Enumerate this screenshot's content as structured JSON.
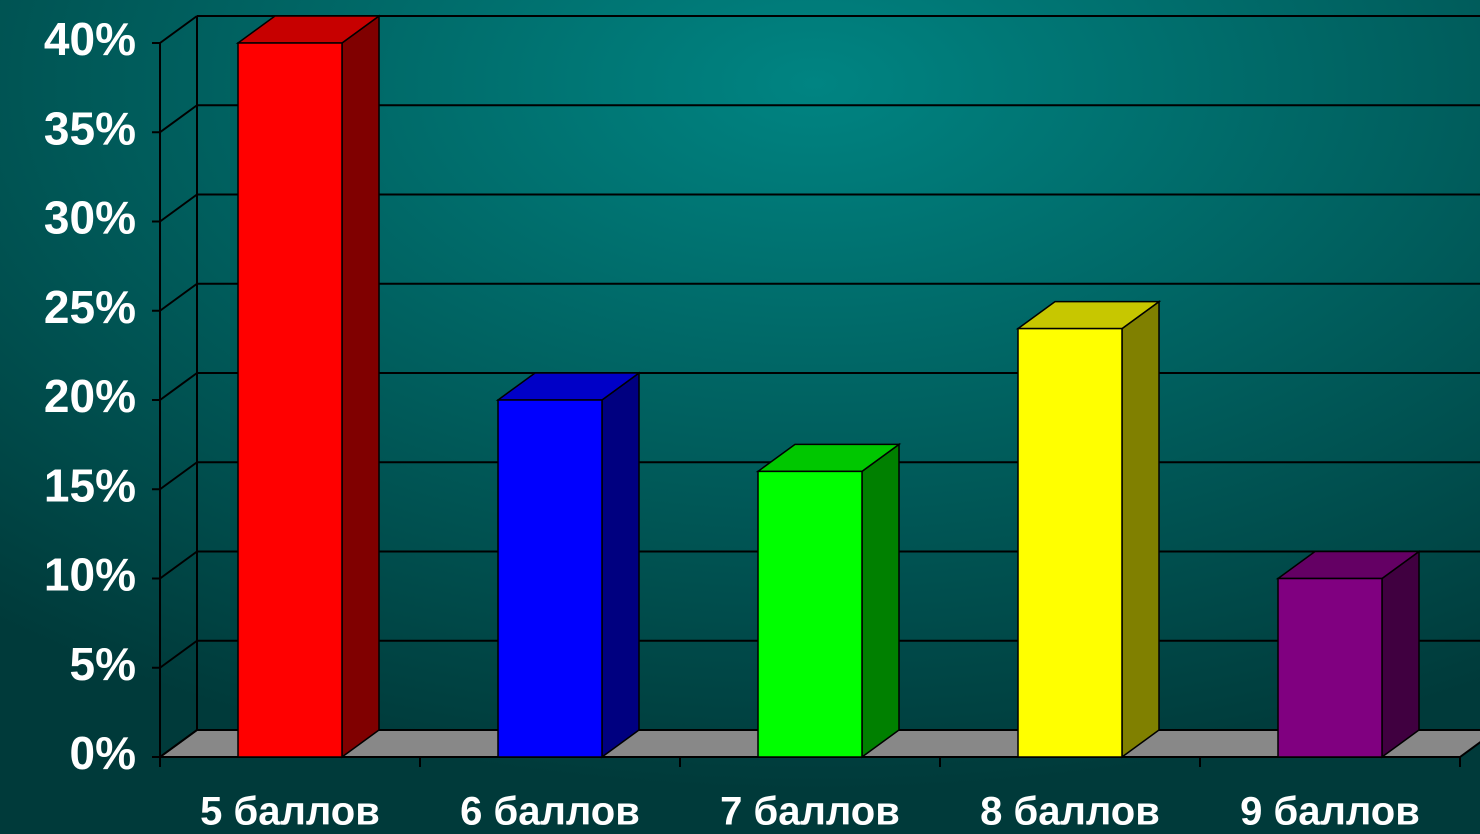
{
  "chart_data": {
    "type": "bar3d",
    "categories": [
      "5 баллов",
      "6 баллов",
      "7 баллов",
      "8 баллов",
      "9 баллов"
    ],
    "values": [
      40,
      20,
      16,
      24,
      10
    ],
    "colors": [
      "#ff0000",
      "#0000ff",
      "#00ff00",
      "#ffff00",
      "#800080"
    ],
    "ylim": [
      0,
      40
    ],
    "yticks": [
      {
        "value": 0,
        "label": "0%"
      },
      {
        "value": 5,
        "label": "5%"
      },
      {
        "value": 10,
        "label": "10%"
      },
      {
        "value": 15,
        "label": "15%"
      },
      {
        "value": 20,
        "label": "20%"
      },
      {
        "value": 25,
        "label": "25%"
      },
      {
        "value": 30,
        "label": "30%"
      },
      {
        "value": 35,
        "label": "35%"
      },
      {
        "value": 40,
        "label": "40%"
      }
    ],
    "grid": true
  }
}
